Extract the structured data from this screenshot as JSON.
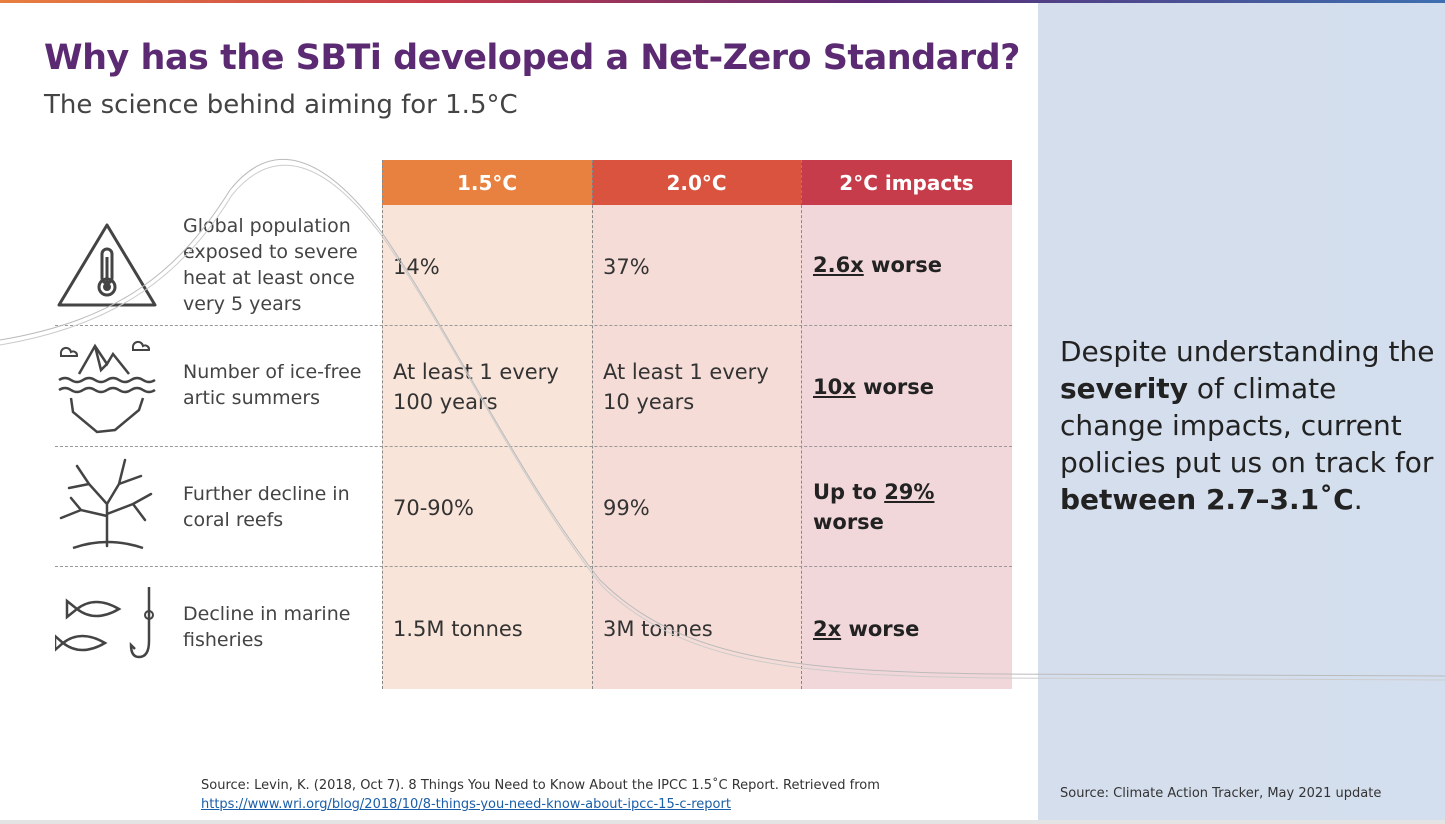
{
  "header": {
    "title": "Why has the SBTi developed a Net-Zero Standard?",
    "subtitle": "The science behind aiming for 1.5°C"
  },
  "table": {
    "columns": [
      "1.5°C",
      "2.0°C",
      "2°C impacts"
    ],
    "rows": [
      {
        "icon": "heat-warning-thermometer-icon",
        "label": "Global population exposed to severe heat at least once very 5 years",
        "v15": "14%",
        "v20": "37%",
        "impact": {
          "pre": "",
          "u": "2.6x",
          "post": " worse"
        }
      },
      {
        "icon": "iceberg-icon",
        "label": "Number of ice-free artic summers",
        "v15": "At least 1 every 100 years",
        "v20": "At least 1 every 10 years",
        "impact": {
          "pre": "",
          "u": "10x",
          "post": " worse"
        }
      },
      {
        "icon": "coral-reef-icon",
        "label": "Further decline in coral reefs",
        "v15": "70-90%",
        "v20": "99%",
        "impact": {
          "pre": "Up to ",
          "u": "29%",
          "post": " worse"
        }
      },
      {
        "icon": "fish-hook-icon",
        "label": "Decline in marine fisheries",
        "v15": "1.5M tonnes",
        "v20": "3M tonnes",
        "impact": {
          "pre": "",
          "u": "2x",
          "post": " worse"
        }
      }
    ]
  },
  "sidenote": {
    "p1": "Despite understanding the ",
    "b1": "severity",
    "p2": " of climate change impacts, current policies put us on track for ",
    "b2": "between 2.7–3.1˚C",
    "p3": "."
  },
  "sources": {
    "left_text": "Source: Levin, K. (2018, Oct 7). 8 Things You Need to Know About the IPCC 1.5˚C Report. Retrieved from",
    "left_link": "https://www.wri.org/blog/2018/10/8-things-you-need-know-about-ipcc-15-c-report",
    "right": "Source: Climate Action Tracker, May 2021 update"
  },
  "colors": {
    "title": "#5b2a73",
    "col_15": "#e8803f",
    "col_20": "#d9533f",
    "col_impacts": "#c63c4a"
  }
}
